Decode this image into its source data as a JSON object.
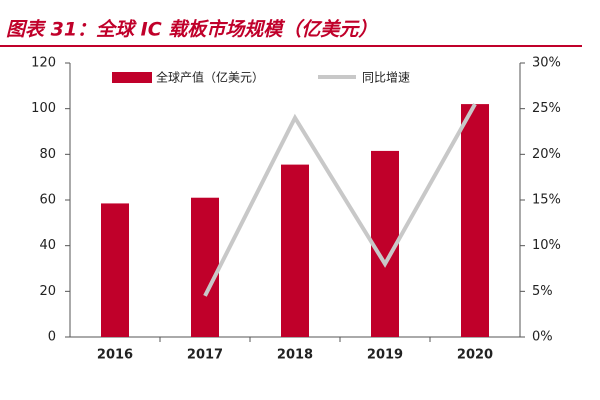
{
  "chart_data": {
    "type": "bar-line",
    "title": "图表 31：全球 IC 载板市场规模（亿美元）",
    "categories": [
      "2016",
      "2017",
      "2018",
      "2019",
      "2020"
    ],
    "series": [
      {
        "name": "全球产值（亿美元）",
        "color": "#c0002a",
        "type": "bar",
        "values": [
          58.5,
          61,
          75.5,
          81.5,
          102
        ]
      },
      {
        "name": "同比增速",
        "color": "#c8c8c8",
        "type": "line",
        "axis": "y2",
        "values": [
          null,
          4.5,
          24,
          8,
          25.5
        ]
      }
    ],
    "ylim": [
      0,
      120
    ],
    "yticks": [
      0,
      20,
      40,
      60,
      80,
      100,
      120
    ],
    "y2lim": [
      0,
      30
    ],
    "y2ticks": [
      {
        "value": 0,
        "label": "0%"
      },
      {
        "value": 5,
        "label": "5%"
      },
      {
        "value": 10,
        "label": "10%"
      },
      {
        "value": 15,
        "label": "15%"
      },
      {
        "value": 20,
        "label": "20%"
      },
      {
        "value": 25,
        "label": "25%"
      },
      {
        "value": 30,
        "label": "30%"
      }
    ]
  }
}
